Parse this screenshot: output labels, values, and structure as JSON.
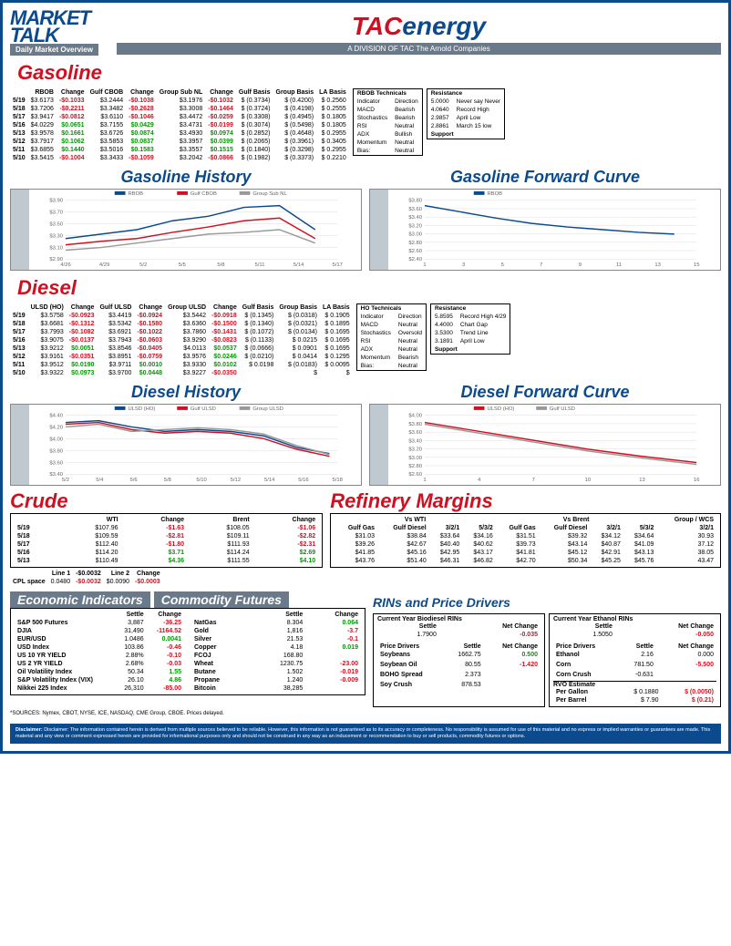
{
  "header": {
    "market": "MARKET",
    "talk": "TALK",
    "overview": "Daily Market Overview",
    "tac_t": "TAC",
    "tac_energy": "energy",
    "division": "A DIVISION OF TAC The Arnold Companies"
  },
  "gasoline": {
    "title": "Gasoline",
    "history_title": "Gasoline History",
    "forward_title": "Gasoline Forward Curve",
    "headers": [
      "",
      "RBOB",
      "Change",
      "Gulf CBOB",
      "Change",
      "Group Sub NL",
      "Change",
      "Gulf Basis",
      "Group Basis",
      "LA Basis"
    ],
    "rows": [
      {
        "date": "5/19",
        "rbob": "$3.6173",
        "rbob_c": "-$0.1033",
        "gcbob": "$3.2444",
        "gcbob_c": "-$0.1038",
        "gsub": "$3.1976",
        "gsub_c": "-$0.1032",
        "gb": "$ (0.3734)",
        "grb": "(0.4200)",
        "la": "0.2560",
        "rbob_s": "neg",
        "gcbob_s": "neg",
        "gsub_s": "neg"
      },
      {
        "date": "5/18",
        "rbob": "$3.7206",
        "rbob_c": "-$0.2211",
        "gcbob": "$3.3482",
        "gcbob_c": "-$0.2628",
        "gsub": "$3.3008",
        "gsub_c": "-$0.1464",
        "gb": "$ (0.3724)",
        "grb": "(0.4198)",
        "la": "0.2555",
        "rbob_s": "neg",
        "gcbob_s": "neg",
        "gsub_s": "neg"
      },
      {
        "date": "5/17",
        "rbob": "$3.9417",
        "rbob_c": "-$0.0812",
        "gcbob": "$3.6110",
        "gcbob_c": "-$0.1046",
        "gsub": "$3.4472",
        "gsub_c": "-$0.0259",
        "gb": "$ (0.3308)",
        "grb": "(0.4945)",
        "la": "0.1805",
        "rbob_s": "neg",
        "gcbob_s": "neg",
        "gsub_s": "neg"
      },
      {
        "date": "5/16",
        "rbob": "$4.0229",
        "rbob_c": "$0.0651",
        "gcbob": "$3.7155",
        "gcbob_c": "$0.0429",
        "gsub": "$3.4731",
        "gsub_c": "-$0.0199",
        "gb": "$ (0.3074)",
        "grb": "(0.5498)",
        "la": "0.1805",
        "rbob_s": "pos",
        "gcbob_s": "pos",
        "gsub_s": "neg"
      },
      {
        "date": "5/13",
        "rbob": "$3.9578",
        "rbob_c": "$0.1661",
        "gcbob": "$3.6726",
        "gcbob_c": "$0.0874",
        "gsub": "$3.4930",
        "gsub_c": "$0.0974",
        "gb": "$ (0.2852)",
        "grb": "(0.4648)",
        "la": "0.2955",
        "rbob_s": "pos",
        "gcbob_s": "pos",
        "gsub_s": "pos"
      },
      {
        "date": "5/12",
        "rbob": "$3.7917",
        "rbob_c": "$0.1062",
        "gcbob": "$3.5853",
        "gcbob_c": "$0.0837",
        "gsub": "$3.3957",
        "gsub_c": "$0.0399",
        "gb": "$ (0.2065)",
        "grb": "(0.3961)",
        "la": "0.3405",
        "rbob_s": "pos",
        "gcbob_s": "pos",
        "gsub_s": "pos"
      },
      {
        "date": "5/11",
        "rbob": "$3.6855",
        "rbob_c": "$0.1440",
        "gcbob": "$3.5016",
        "gcbob_c": "$0.1583",
        "gsub": "$3.3557",
        "gsub_c": "$0.1515",
        "gb": "$ (0.1840)",
        "grb": "(0.3298)",
        "la": "0.2955",
        "rbob_s": "pos",
        "gcbob_s": "pos",
        "gsub_s": "pos"
      },
      {
        "date": "5/10",
        "rbob": "$3.5415",
        "rbob_c": "-$0.1004",
        "gcbob": "$3.3433",
        "gcbob_c": "-$0.1059",
        "gsub": "$3.2042",
        "gsub_c": "-$0.0866",
        "gb": "$ (0.1982)",
        "grb": "(0.3373)",
        "la": "0.2210",
        "rbob_s": "neg",
        "gcbob_s": "neg",
        "gsub_s": "neg"
      }
    ],
    "tech": {
      "title": "RBOB Technicals",
      "rows": [
        [
          "Indicator",
          "Direction"
        ],
        [
          "MACD",
          "Bearish"
        ],
        [
          "Stochastics",
          "Bearish"
        ],
        [
          "RSI",
          "Neutral"
        ],
        [
          "ADX",
          "Bullish"
        ],
        [
          "Momentum",
          "Neutral"
        ],
        [
          "Bias:",
          "Neutral"
        ]
      ]
    },
    "resistance": {
      "title_r": "Resistance",
      "title_s": "Support",
      "rows": [
        [
          "5.0000",
          "Never say Never"
        ],
        [
          "4.0640",
          "Record High"
        ],
        [
          "2.9857",
          "April Low"
        ],
        [
          "2.8861",
          "March 15 low"
        ]
      ]
    },
    "history_legend": [
      "RBOB",
      "Gulf CBOB",
      "Group Sub NL"
    ],
    "history_colors": [
      "#0b4a8c",
      "#d01020",
      "#999999"
    ],
    "history_x": [
      "4/26",
      "4/29",
      "5/2",
      "5/5",
      "5/8",
      "5/11",
      "5/14",
      "5/17"
    ],
    "history_y": [
      "$2.90",
      "$3.10",
      "$3.30",
      "$3.50",
      "$3.70",
      "$3.90"
    ],
    "forward_legend": [
      "RBOB"
    ],
    "forward_colors": [
      "#0b4a8c"
    ],
    "forward_x": [
      "1",
      "3",
      "5",
      "7",
      "9",
      "11",
      "13",
      "15"
    ],
    "forward_y": [
      "$2.40",
      "$2.60",
      "$2.80",
      "$3.00",
      "$3.20",
      "$3.40",
      "$3.60",
      "$3.80"
    ]
  },
  "diesel": {
    "title": "Diesel",
    "history_title": "Diesel History",
    "forward_title": "Diesel Forward Curve",
    "headers": [
      "",
      "ULSD (HO)",
      "Change",
      "Gulf ULSD",
      "Change",
      "Group ULSD",
      "Change",
      "Gulf Basis",
      "Group Basis",
      "LA Basis"
    ],
    "rows": [
      {
        "date": "5/19",
        "u": "$3.5758",
        "u_c": "-$0.0923",
        "g": "$3.4419",
        "g_c": "-$0.0924",
        "gr": "$3.5442",
        "gr_c": "-$0.0918",
        "gb": "$ (0.1345)",
        "grb": "(0.0318)",
        "la": "0.1905",
        "u_s": "neg",
        "g_s": "neg",
        "gr_s": "neg"
      },
      {
        "date": "5/18",
        "u": "$3.6681",
        "u_c": "-$0.1312",
        "g": "$3.5342",
        "g_c": "-$0.1580",
        "gr": "$3.6360",
        "gr_c": "-$0.1500",
        "gb": "$ (0.1340)",
        "grb": "(0.0321)",
        "la": "0.1895",
        "u_s": "neg",
        "g_s": "neg",
        "gr_s": "neg"
      },
      {
        "date": "5/17",
        "u": "$3.7993",
        "u_c": "-$0.1082",
        "g": "$3.6921",
        "g_c": "-$0.1022",
        "gr": "$3.7860",
        "gr_c": "-$0.1431",
        "gb": "$ (0.1072)",
        "grb": "(0.0134)",
        "la": "0.1695",
        "u_s": "neg",
        "g_s": "neg",
        "gr_s": "neg"
      },
      {
        "date": "5/16",
        "u": "$3.9075",
        "u_c": "-$0.0137",
        "g": "$3.7943",
        "g_c": "-$0.0603",
        "gr": "$3.9290",
        "gr_c": "-$0.0823",
        "gb": "$ (0.1133)",
        "grb": "0.0215",
        "la": "0.1695",
        "u_s": "neg",
        "g_s": "neg",
        "gr_s": "neg"
      },
      {
        "date": "5/13",
        "u": "$3.9212",
        "u_c": "$0.0051",
        "g": "$3.8546",
        "g_c": "-$0.0405",
        "gr": "$4.0113",
        "gr_c": "$0.0537",
        "gb": "$ (0.0666)",
        "grb": "0.0901",
        "la": "0.1695",
        "u_s": "pos",
        "g_s": "neg",
        "gr_s": "pos"
      },
      {
        "date": "5/12",
        "u": "$3.9161",
        "u_c": "-$0.0351",
        "g": "$3.8951",
        "g_c": "-$0.0759",
        "gr": "$3.9576",
        "gr_c": "$0.0246",
        "gb": "$ (0.0210)",
        "grb": "0.0414",
        "la": "0.1295",
        "u_s": "neg",
        "g_s": "neg",
        "gr_s": "pos"
      },
      {
        "date": "5/11",
        "u": "$3.9512",
        "u_c": "$0.0190",
        "g": "$3.9711",
        "g_c": "$0.0010",
        "gr": "$3.9330",
        "gr_c": "$0.0102",
        "gb": "$ 0.0198",
        "grb": "(0.0183)",
        "la": "0.0095",
        "u_s": "pos",
        "g_s": "pos",
        "gr_s": "pos"
      },
      {
        "date": "5/10",
        "u": "$3.9322",
        "u_c": "$0.0973",
        "g": "$3.9700",
        "g_c": "$0.0448",
        "gr": "$3.9227",
        "gr_c": "-$0.0350",
        "gb": "",
        "grb": "",
        "la": "",
        "u_s": "pos",
        "g_s": "pos",
        "gr_s": "neg"
      }
    ],
    "tech": {
      "title": "HO Technicals",
      "rows": [
        [
          "Indicator",
          "Direction"
        ],
        [
          "MACD",
          "Neutral"
        ],
        [
          "Stochastics",
          "Oversold"
        ],
        [
          "RSI",
          "Neutral"
        ],
        [
          "ADX",
          "Neutral"
        ],
        [
          "Momentum",
          "Bearish"
        ],
        [
          "Bias:",
          "Neutral"
        ]
      ]
    },
    "resistance": {
      "title_r": "Resistance",
      "title_s": "Support",
      "rows": [
        [
          "5.8595",
          "Record High 4/29"
        ],
        [
          "4.4000",
          "Chart Gap"
        ],
        [
          "3.5300",
          "Trend Line"
        ],
        [
          "3.1891",
          "April Low"
        ]
      ]
    },
    "history_legend": [
      "ULSD (HO)",
      "Gulf ULSD",
      "Group ULSD"
    ],
    "history_colors": [
      "#0b4a8c",
      "#d01020",
      "#999999"
    ],
    "history_x": [
      "5/2",
      "5/4",
      "5/6",
      "5/8",
      "5/10",
      "5/12",
      "5/14",
      "5/16",
      "5/18"
    ],
    "history_y": [
      "$3.40",
      "$3.60",
      "$3.80",
      "$4.00",
      "$4.20",
      "$4.40"
    ],
    "forward_legend": [
      "ULSD (HO)",
      "Gulf ULSD"
    ],
    "forward_colors": [
      "#d01020",
      "#999999"
    ],
    "forward_x": [
      "1",
      "4",
      "7",
      "10",
      "13",
      "16"
    ],
    "forward_y": [
      "$2.60",
      "$2.80",
      "$3.00",
      "$3.20",
      "$3.40",
      "$3.60",
      "$3.80",
      "$4.00"
    ]
  },
  "crude": {
    "title": "Crude",
    "headers": [
      "",
      "WTI",
      "Change",
      "Brent",
      "Change"
    ],
    "rows": [
      {
        "d": "5/19",
        "w": "$107.96",
        "wc": "-$1.63",
        "b": "$108.05",
        "bc": "-$1.06",
        "ws": "neg",
        "bs": "neg"
      },
      {
        "d": "5/18",
        "w": "$109.59",
        "wc": "-$2.81",
        "b": "$109.11",
        "bc": "-$2.82",
        "ws": "neg",
        "bs": "neg"
      },
      {
        "d": "5/17",
        "w": "$112.40",
        "wc": "-$1.80",
        "b": "$111.93",
        "bc": "-$2.31",
        "ws": "neg",
        "bs": "neg"
      },
      {
        "d": "5/16",
        "w": "$114.20",
        "wc": "$3.71",
        "b": "$114.24",
        "bc": "$2.69",
        "ws": "pos",
        "bs": "pos"
      },
      {
        "d": "5/13",
        "w": "$110.49",
        "wc": "$4.36",
        "b": "$111.55",
        "bc": "$4.10",
        "ws": "pos",
        "bs": "pos"
      }
    ],
    "cpl": {
      "label": "CPL space",
      "l1h": "Line 1",
      "l1": "0.0480",
      "l1c": "-$0.0032",
      "l2h": "Line 2",
      "l2": "$0.0090",
      "l2c": "-$0.0003",
      "cs": "neg"
    }
  },
  "refinery": {
    "title": "Refinery Margins",
    "headers_top": [
      "Vs WTI",
      "Vs Brent",
      "Group / WCS"
    ],
    "headers": [
      "Gulf Gas",
      "Gulf Diesel",
      "3/2/1",
      "5/3/2",
      "Gulf Gas",
      "Gulf Diesel",
      "3/2/1",
      "5/3/2",
      "3/2/1"
    ],
    "rows": [
      [
        "$31.03",
        "$38.84",
        "$33.64",
        "$34.16",
        "$31.51",
        "$39.32",
        "$34.12",
        "$34.64",
        "30.93"
      ],
      [
        "$39.26",
        "$42.67",
        "$40.40",
        "$40.62",
        "$39.73",
        "$43.14",
        "$40.87",
        "$41.09",
        "37.12"
      ],
      [
        "$41.85",
        "$45.16",
        "$42.95",
        "$43.17",
        "$41.81",
        "$45.12",
        "$42.91",
        "$43.13",
        "38.05"
      ],
      [
        "$43.76",
        "$51.40",
        "$46.31",
        "$46.82",
        "$42.70",
        "$50.34",
        "$45.25",
        "$45.76",
        "43.47"
      ]
    ]
  },
  "econ": {
    "title1": "Economic Indicators",
    "title2": "Commodity Futures",
    "h1": [
      "",
      "Settle",
      "Change"
    ],
    "h2": [
      "",
      "Settle",
      "Change"
    ],
    "rows1": [
      [
        "S&P 500 Futures",
        "3,887",
        "-36.25",
        "neg"
      ],
      [
        "DJIA",
        "31,490",
        "-1164.52",
        "neg"
      ],
      [
        "EUR/USD",
        "1.0486",
        "0.0041",
        "pos"
      ],
      [
        "USD Index",
        "103.86",
        "-0.46",
        "neg"
      ],
      [
        "US 10 YR YIELD",
        "2.88%",
        "-0.10",
        "neg"
      ],
      [
        "US 2 YR YIELD",
        "2.68%",
        "-0.03",
        "neg"
      ],
      [
        "Oil Volatility Index",
        "50.34",
        "1.55",
        "pos"
      ],
      [
        "S&P Volatility Index (VIX)",
        "26.10",
        "4.86",
        "pos"
      ],
      [
        "Nikkei 225 Index",
        "26,310",
        "-85.00",
        "neg"
      ]
    ],
    "rows2": [
      [
        "NatGas",
        "8.304",
        "0.064",
        "pos"
      ],
      [
        "Gold",
        "1,816",
        "-3.7",
        "neg"
      ],
      [
        "Silver",
        "21.53",
        "-0.1",
        "neg"
      ],
      [
        "Copper",
        "4.18",
        "0.019",
        "pos"
      ],
      [
        "FCOJ",
        "168.80",
        "",
        ""
      ],
      [
        "Wheat",
        "1230.75",
        "-23.00",
        "neg"
      ],
      [
        "Butane",
        "1.502",
        "-0.019",
        "neg"
      ],
      [
        "Propane",
        "1.240",
        "-0.009",
        "neg"
      ],
      [
        "Bitcoin",
        "38,285",
        "",
        ""
      ]
    ]
  },
  "rins": {
    "title": "RINs and Price Drivers",
    "bio_h": "Current Year Biodiesel RINs",
    "eth_h": "Current Year Ethanol RINs",
    "sh": [
      "Settle",
      "Net Change"
    ],
    "bio": [
      "1.7900",
      "-0.035",
      "neg"
    ],
    "eth": [
      "1.5050",
      "-0.050",
      "neg"
    ],
    "pd_h": "Price Drivers",
    "left": [
      [
        "Soybeans",
        "1662.75",
        "0.500",
        "pos"
      ],
      [
        "",
        "",
        "",
        ""
      ],
      [
        "Soybean Oil",
        "80.55",
        "-1.420",
        "neg"
      ],
      [
        "",
        "",
        "",
        ""
      ],
      [
        "BOHO Spread",
        "2.373",
        "",
        ""
      ],
      [
        "",
        "",
        "",
        ""
      ],
      [
        "Soy Crush",
        "878.53",
        "",
        ""
      ]
    ],
    "right": [
      [
        "Ethanol",
        "2.16",
        "0.000",
        ""
      ],
      [
        "",
        "",
        "",
        ""
      ],
      [
        "Corn",
        "781.50",
        "-5.500",
        "neg"
      ],
      [
        "",
        "",
        "",
        ""
      ],
      [
        "Corn Crush",
        "-0.631",
        "",
        ""
      ]
    ],
    "rvo_h": "RVO Estimate",
    "rvo": [
      [
        "Per Gallon",
        "$ 0.1880",
        "(0.0050)",
        "neg"
      ],
      [
        "Per Barrel",
        "$ 7.90",
        "(0.21)",
        "neg"
      ]
    ]
  },
  "sources": "*SOURCES: Nymex, CBOT, NYSE, ICE, NASDAQ, CME Group, CBOE. Prices delayed.",
  "disclaimer": "Disclaimer: The information contained herein is derived from multiple sources believed to be reliable. However, this information is not guaranteed as to its accuracy or completeness. No responsibility is assumed for use of this material and no express or implied warranties or guarantees are made. This material and any view or comment expressed herein are provided for informational purposes only and should not be construed in any way as an inducement or recommendation to buy or sell products, commodity futures or options."
}
